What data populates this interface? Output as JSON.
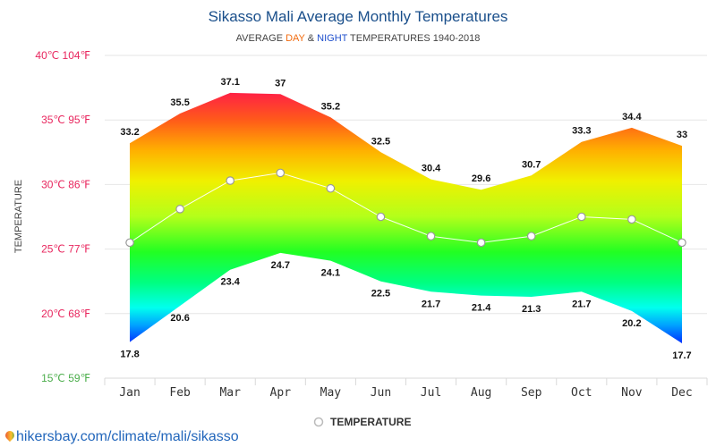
{
  "chart_data": {
    "type": "area",
    "title": "Sikasso Mali Average Monthly Temperatures",
    "subtitle": {
      "part1": "AVERAGE ",
      "day": "DAY",
      "part2": " & ",
      "night": "NIGHT",
      "part3": " TEMPERATURES 1940-2018"
    },
    "ylabel": "TEMPERATURE",
    "ylim": [
      15,
      40
    ],
    "yticks": [
      {
        "value": 40,
        "label": "40℃ 104℉",
        "color": "#e8265e"
      },
      {
        "value": 35,
        "label": "35℃ 95℉",
        "color": "#e8265e"
      },
      {
        "value": 30,
        "label": "30℃ 86℉",
        "color": "#e8265e"
      },
      {
        "value": 25,
        "label": "25℃ 77℉",
        "color": "#e8265e"
      },
      {
        "value": 20,
        "label": "20℃ 68℉",
        "color": "#e8265e"
      },
      {
        "value": 15,
        "label": "15℃ 59℉",
        "color": "#4cae4c"
      }
    ],
    "categories": [
      "Jan",
      "Feb",
      "Mar",
      "Apr",
      "May",
      "Jun",
      "Jul",
      "Aug",
      "Sep",
      "Oct",
      "Nov",
      "Dec"
    ],
    "series": [
      {
        "name": "",
        "values": [
          33.2,
          35.5,
          37.1,
          37,
          35.2,
          32.5,
          30.4,
          29.6,
          30.7,
          33.3,
          34.4,
          33
        ]
      },
      {
        "name": "",
        "values": [
          17.8,
          20.6,
          23.4,
          24.7,
          24.1,
          22.5,
          21.7,
          21.4,
          21.3,
          21.7,
          20.2,
          17.7
        ]
      },
      {
        "name": "TEMPERATURE",
        "values": [
          25.5,
          28.1,
          30.3,
          30.9,
          29.7,
          27.5,
          26,
          25.5,
          26,
          27.5,
          27.3,
          25.5
        ]
      }
    ],
    "legend": {
      "label": "TEMPERATURE",
      "position": "bottom-center"
    },
    "grid": true,
    "colors": {
      "day": "#f26b0f",
      "night": "#1f4fcc",
      "title": "#1a4f8b",
      "line": "#ffffff"
    }
  },
  "footer": {
    "link_text": "hikersbay.com/climate/mali/sikasso"
  }
}
